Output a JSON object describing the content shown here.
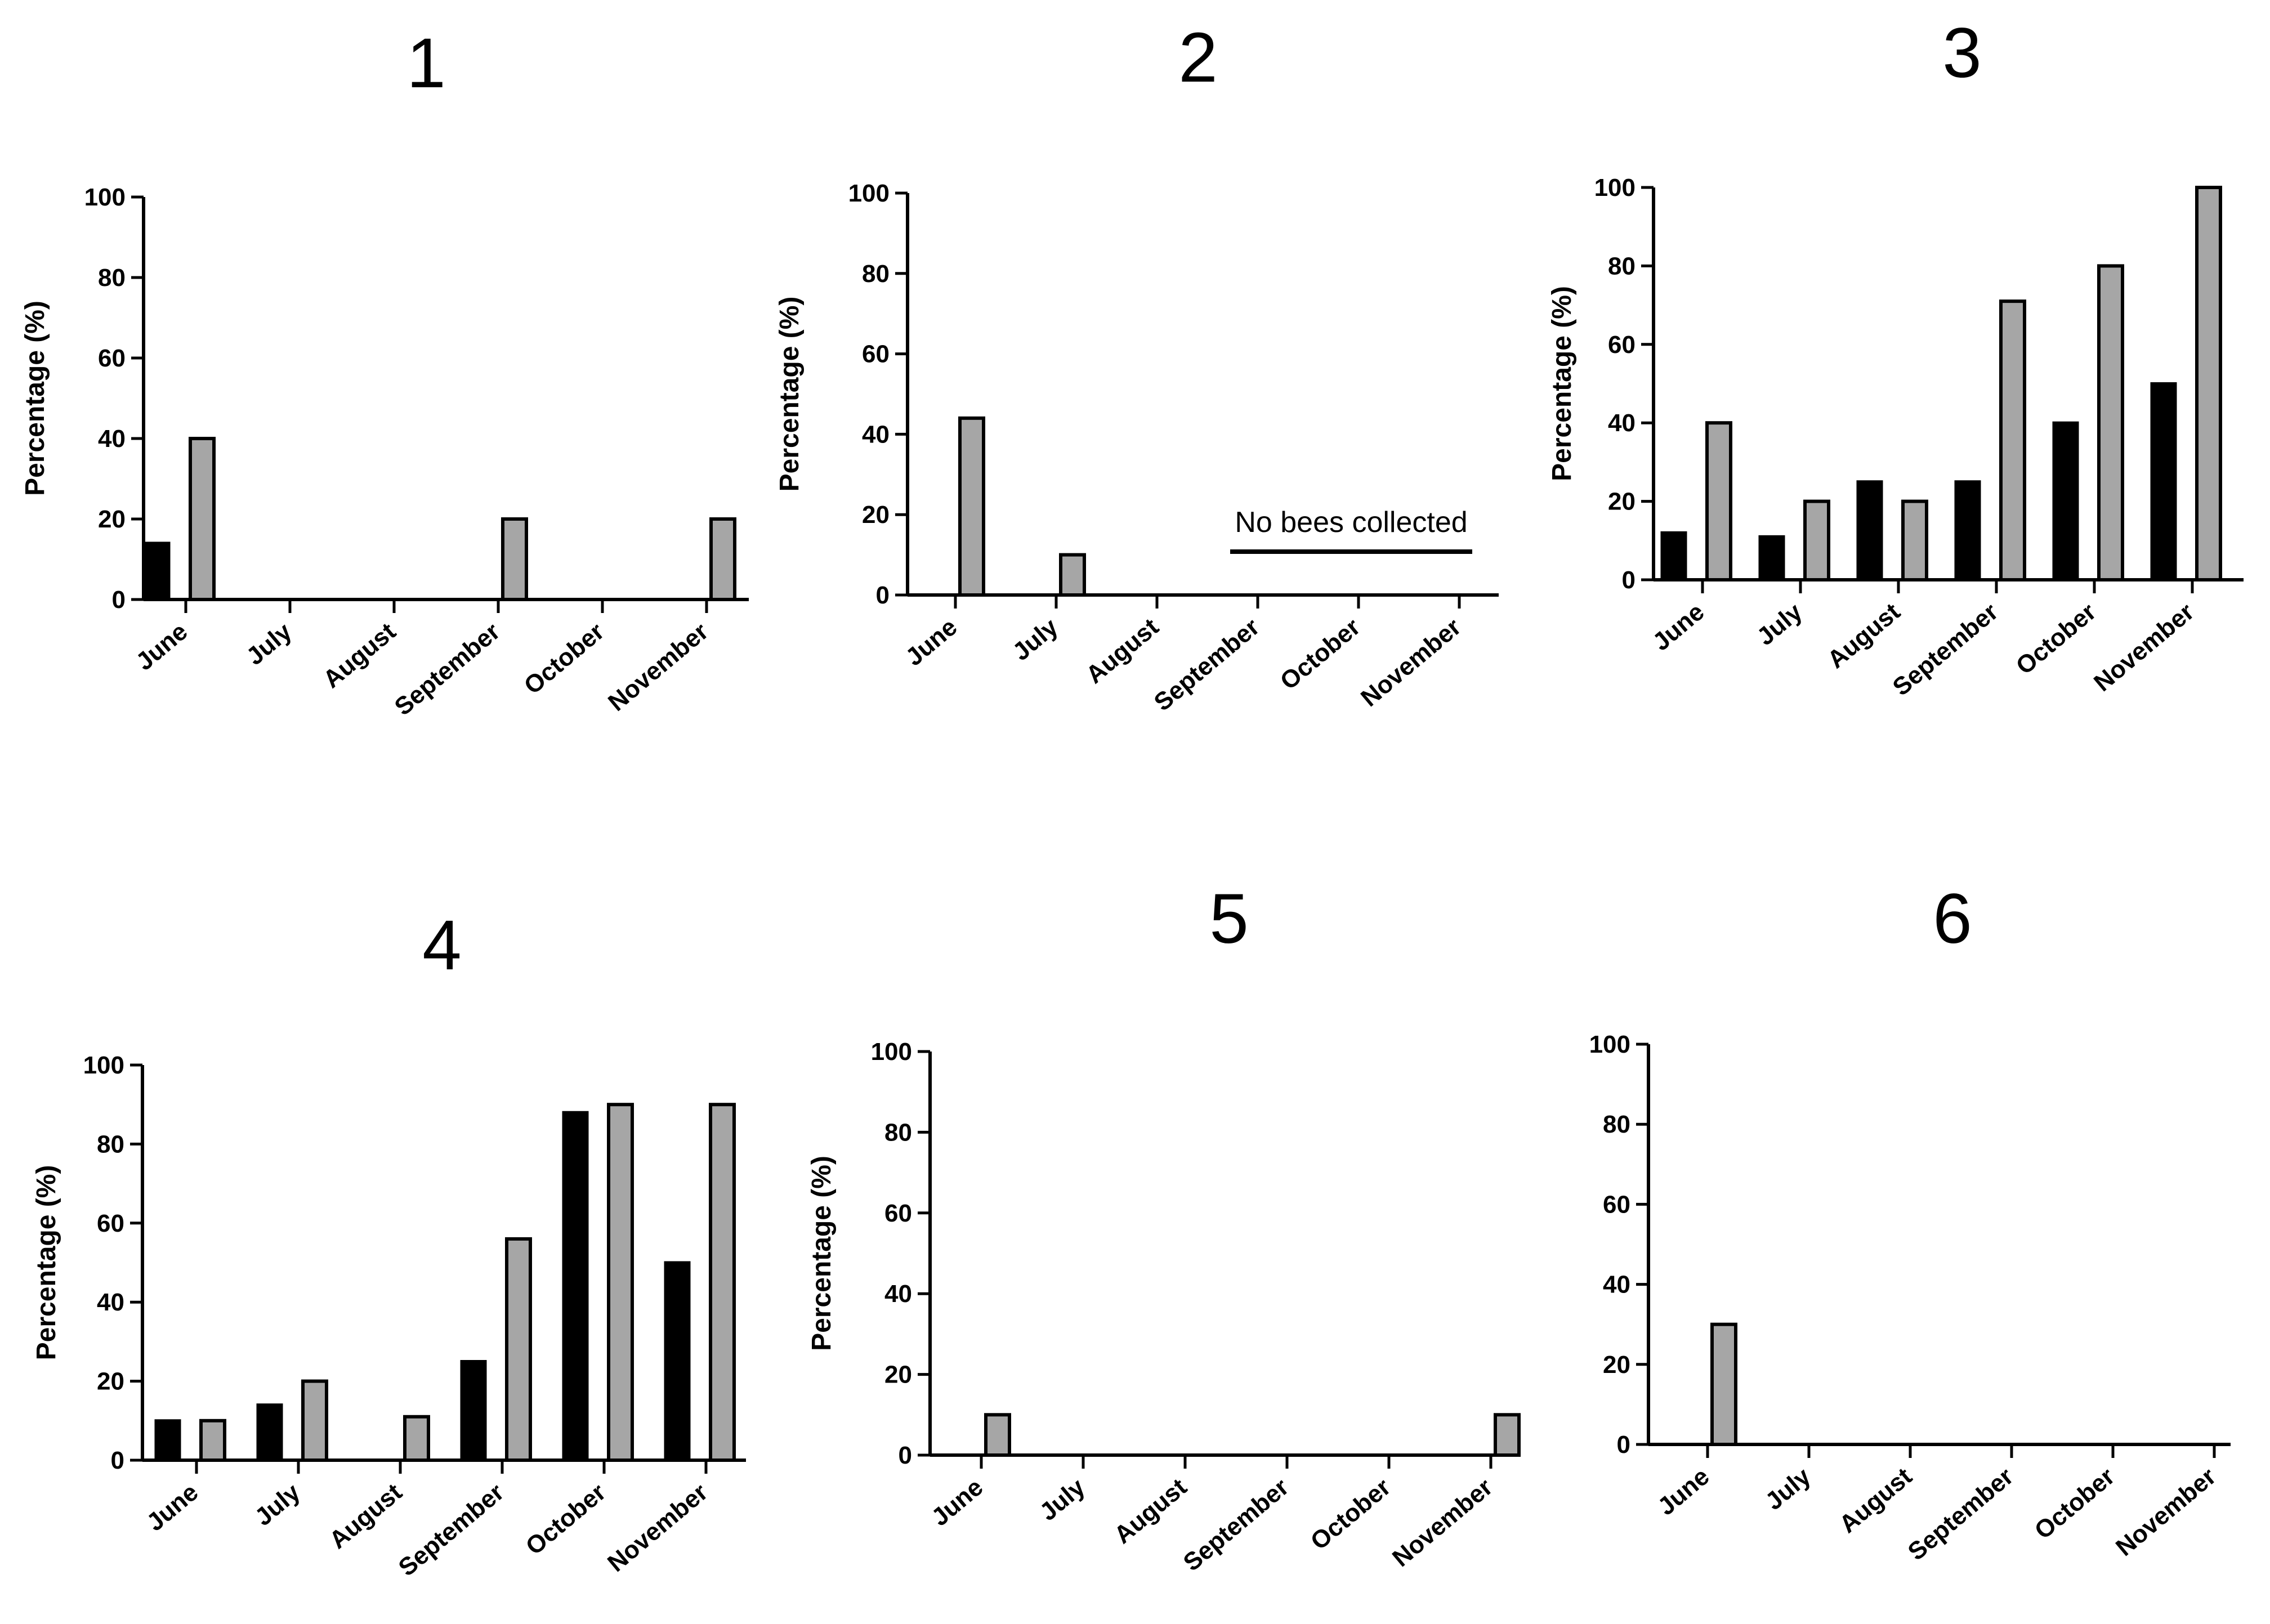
{
  "chart_data": [
    {
      "type": "bar",
      "title": "1",
      "ylabel": "Percentage (%)",
      "ylim": [
        0,
        100
      ],
      "yticks": [
        0,
        20,
        40,
        60,
        80,
        100
      ],
      "categories": [
        "June",
        "July",
        "August",
        "September",
        "October",
        "November"
      ],
      "series": [
        {
          "name": "black",
          "values": [
            14,
            0,
            0,
            0,
            0,
            0
          ]
        },
        {
          "name": "grey",
          "values": [
            40,
            0,
            0,
            20,
            0,
            20
          ]
        }
      ]
    },
    {
      "type": "bar",
      "title": "2",
      "ylabel": "Percentage (%)",
      "ylim": [
        0,
        100
      ],
      "yticks": [
        0,
        20,
        40,
        60,
        80,
        100
      ],
      "categories": [
        "June",
        "July",
        "August",
        "September",
        "October",
        "November"
      ],
      "series": [
        {
          "name": "black",
          "values": [
            0,
            0,
            0,
            0,
            0,
            0
          ]
        },
        {
          "name": "grey",
          "values": [
            44,
            10,
            0,
            0,
            0,
            0
          ]
        }
      ],
      "annotation": "No bees collected"
    },
    {
      "type": "bar",
      "title": "3",
      "ylabel": "Percentage (%)",
      "ylim": [
        0,
        100
      ],
      "yticks": [
        0,
        20,
        40,
        60,
        80,
        100
      ],
      "categories": [
        "June",
        "July",
        "August",
        "September",
        "October",
        "November"
      ],
      "series": [
        {
          "name": "black",
          "values": [
            12,
            11,
            25,
            25,
            40,
            50
          ]
        },
        {
          "name": "grey",
          "values": [
            40,
            20,
            20,
            71,
            80,
            100
          ]
        }
      ]
    },
    {
      "type": "bar",
      "title": "4",
      "ylabel": "Percentage (%)",
      "ylim": [
        0,
        100
      ],
      "yticks": [
        0,
        20,
        40,
        60,
        80,
        100
      ],
      "categories": [
        "June",
        "July",
        "August",
        "September",
        "October",
        "November"
      ],
      "series": [
        {
          "name": "black",
          "values": [
            10,
            14,
            0,
            25,
            88,
            50
          ]
        },
        {
          "name": "grey",
          "values": [
            10,
            20,
            11,
            56,
            90,
            90
          ]
        }
      ]
    },
    {
      "type": "bar",
      "title": "5",
      "ylabel": "Percentage (%)",
      "ylim": [
        0,
        100
      ],
      "yticks": [
        0,
        20,
        40,
        60,
        80,
        100
      ],
      "categories": [
        "June",
        "July",
        "August",
        "September",
        "October",
        "November"
      ],
      "series": [
        {
          "name": "black",
          "values": [
            0,
            0,
            0,
            0,
            0,
            0
          ]
        },
        {
          "name": "grey",
          "values": [
            10,
            0,
            0,
            0,
            0,
            10
          ]
        }
      ]
    },
    {
      "type": "bar",
      "title": "6",
      "ylabel": "",
      "ylim": [
        0,
        100
      ],
      "yticks": [
        0,
        20,
        40,
        60,
        80,
        100
      ],
      "categories": [
        "June",
        "July",
        "August",
        "September",
        "October",
        "November"
      ],
      "series": [
        {
          "name": "black",
          "values": [
            0,
            0,
            0,
            0,
            0,
            0
          ]
        },
        {
          "name": "grey",
          "values": [
            30,
            0,
            0,
            0,
            0,
            0
          ]
        }
      ]
    }
  ]
}
